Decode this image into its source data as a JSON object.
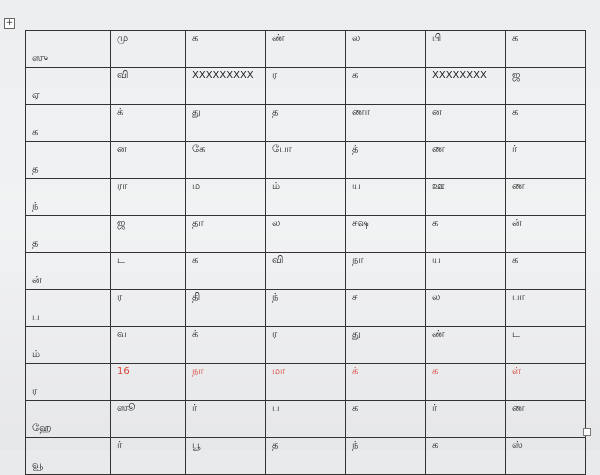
{
  "table": {
    "rows": [
      [
        "ஸு",
        "மு",
        "க",
        "ண்",
        "ல",
        "பி",
        "க"
      ],
      [
        "ஏ",
        "வி",
        "XXXXXXXXX",
        "ர",
        "க",
        "XXXXXXXX",
        "ஜ"
      ],
      [
        "க",
        "க்",
        "து",
        "த",
        "ணா",
        "ன",
        "க"
      ],
      [
        "த",
        "ன",
        "கே",
        "போ",
        "த்",
        "ண",
        "ர்"
      ],
      [
        "ந்",
        "ரா",
        "ம",
        "ம்",
        "ய",
        "ஊ",
        "ண"
      ],
      [
        "த",
        "ஜ",
        "தா",
        "ல",
        "சஷ",
        "க",
        "ன்"
      ],
      [
        "ன்",
        "ட",
        "க",
        "வி",
        "நா",
        "ய",
        "க"
      ],
      [
        "ப",
        "ர",
        "தி",
        "ந்",
        "ச",
        "ல",
        "பா"
      ],
      [
        "ம்",
        "வ",
        "க்",
        "ர",
        "து",
        "ண்",
        "ட"
      ],
      [
        "ர",
        "16",
        "நா",
        "மா",
        "க்",
        "க",
        "ள்"
      ],
      [
        "ஹே",
        "ஸூ",
        "ர்",
        "ப",
        "க",
        "ர்",
        "ண"
      ],
      [
        "வூ",
        "ர்",
        "பூ",
        "த",
        "ந்",
        "க",
        "ஸ்"
      ]
    ]
  }
}
